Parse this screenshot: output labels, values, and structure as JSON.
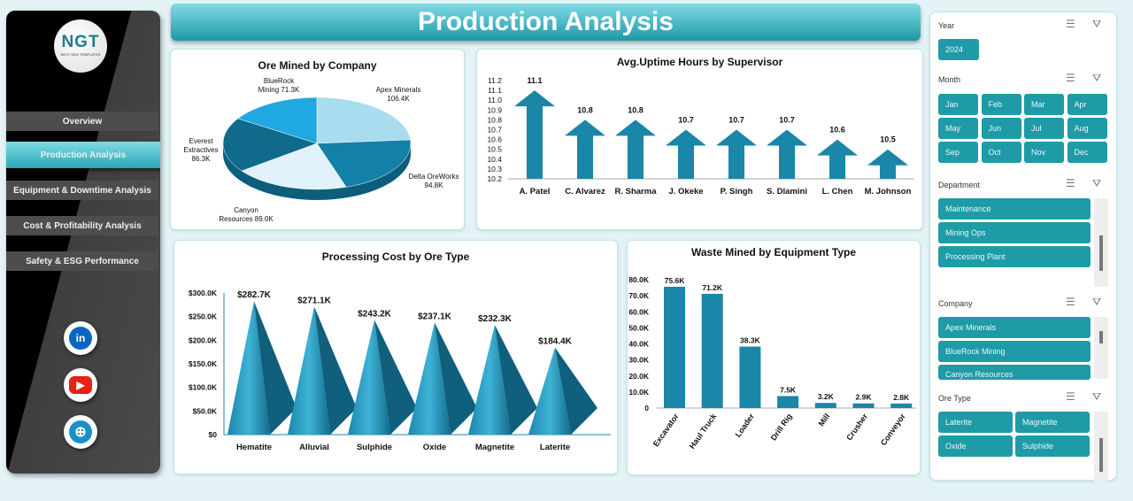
{
  "title": "Production Analysis",
  "logo": {
    "text": "NGT",
    "tagline": "NEXT GEN TEMPLATES"
  },
  "nav": [
    {
      "label": "Overview"
    },
    {
      "label": "Production Analysis",
      "active": true
    },
    {
      "label": "Equipment & Downtime Analysis"
    },
    {
      "label": "Cost & Profitability Analysis"
    },
    {
      "label": "Safety & ESG Performance"
    }
  ],
  "social": [
    {
      "icon": "linkedin-icon",
      "label": "in",
      "color": "#0a66c2"
    },
    {
      "icon": "youtube-icon",
      "label": "▶",
      "color": "#e62117"
    },
    {
      "icon": "globe-icon",
      "label": "⊕",
      "color": "#1a8fc8"
    }
  ],
  "colors": {
    "accent": "#1f9aa7",
    "bar": "#1a86a8"
  },
  "slicers": {
    "year": {
      "title": "Year",
      "items": [
        "2024"
      ]
    },
    "month": {
      "title": "Month",
      "items": [
        "Jan",
        "Feb",
        "Mar",
        "Apr",
        "May",
        "Jun",
        "Jul",
        "Aug",
        "Sep",
        "Oct",
        "Nov",
        "Dec"
      ]
    },
    "department": {
      "title": "Department",
      "items": [
        "Maintenance",
        "Mining Ops",
        "Processing Plant"
      ]
    },
    "company": {
      "title": "Company",
      "items": [
        "Apex Minerals",
        "BlueRock Mining",
        "Canyon Resources"
      ]
    },
    "ore_type": {
      "title": "Ore Type",
      "items": [
        "Laterite",
        "Magnetite",
        "Oxide",
        "Sulphide"
      ]
    }
  },
  "chart_data": [
    {
      "type": "pie",
      "title": "Ore Mined by Company",
      "categories": [
        "Apex Minerals",
        "Delta OreWorks",
        "Canyon Resources",
        "Everest Extractives",
        "BlueRock Mining"
      ],
      "values": [
        106.4,
        94.8,
        89.0,
        86.3,
        71.3
      ],
      "labels": [
        "106.4K",
        "94.8K",
        "89.0K",
        "86.3K",
        "71.3K"
      ],
      "colors": [
        "#a8dcef",
        "#1380a8",
        "#e2f2fa",
        "#0f6a8c",
        "#20a8e0"
      ]
    },
    {
      "type": "bar",
      "title": "Avg.Uptime Hours by Supervisor",
      "categories": [
        "A. Patel",
        "C. Alvarez",
        "R. Sharma",
        "J. Okeke",
        "P. Singh",
        "S. Dlamini",
        "L. Chen",
        "M. Johnson"
      ],
      "values": [
        11.1,
        10.8,
        10.8,
        10.7,
        10.7,
        10.7,
        10.6,
        10.5
      ],
      "ylim": [
        10.2,
        11.2
      ],
      "yticks": [
        "10.2",
        "10.3",
        "10.4",
        "10.5",
        "10.6",
        "10.7",
        "10.8",
        "10.9",
        "11.0",
        "11.1",
        "11.2"
      ]
    },
    {
      "type": "bar",
      "title": "Processing Cost by Ore Type",
      "categories": [
        "Hematite",
        "Alluvial",
        "Sulphide",
        "Oxide",
        "Magnetite",
        "Laterite"
      ],
      "values": [
        282.7,
        271.1,
        243.2,
        237.1,
        232.3,
        184.4
      ],
      "labels": [
        "$282.7K",
        "$271.1K",
        "$243.2K",
        "$237.1K",
        "$232.3K",
        "$184.4K"
      ],
      "ylim": [
        0,
        300
      ],
      "yticks": [
        "$0",
        "$50.0K",
        "$100.0K",
        "$150.0K",
        "$200.0K",
        "$250.0K",
        "$300.0K"
      ]
    },
    {
      "type": "bar",
      "title": "Waste Mined by Equipment Type",
      "categories": [
        "Excavator",
        "Haul Truck",
        "Loader",
        "Drill Rig",
        "Mill",
        "Crusher",
        "Conveyor"
      ],
      "values": [
        75.6,
        71.2,
        38.3,
        7.5,
        3.2,
        2.9,
        2.8
      ],
      "labels": [
        "75.6K",
        "71.2K",
        "38.3K",
        "7.5K",
        "3.2K",
        "2.9K",
        "2.8K"
      ],
      "ylim": [
        0,
        80
      ],
      "yticks": [
        "0",
        "10.0K",
        "20.0K",
        "30.0K",
        "40.0K",
        "50.0K",
        "60.0K",
        "70.0K",
        "80.0K"
      ]
    }
  ]
}
